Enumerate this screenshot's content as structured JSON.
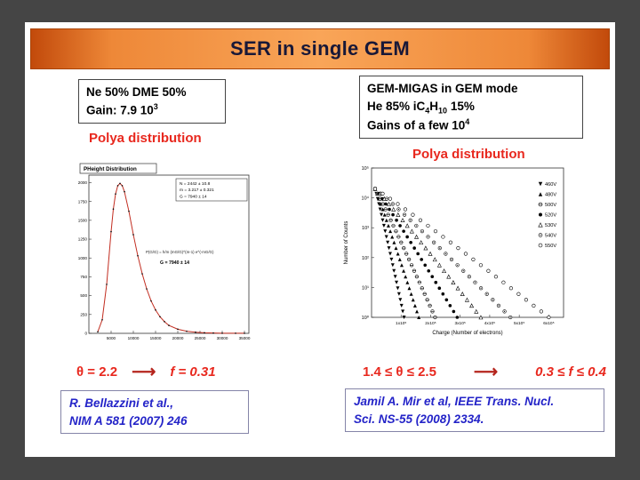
{
  "title": "SER in single GEM",
  "left": {
    "info_box": {
      "line1": "Ne 50% DME 50%",
      "gain_base": "Gain: 7.9 10",
      "gain_exp": "3"
    },
    "polya_label": "Polya distribution",
    "theta": "θ = 2.2",
    "f": "f = 0.31",
    "citation": [
      "R. Bellazzini et al.,",
      "NIM A 581 (2007) 246"
    ]
  },
  "right": {
    "info_box": {
      "line1": "GEM-MIGAS in GEM mode",
      "line2": {
        "a": "He 85% iC",
        "sub1": "4",
        "b": "H",
        "sub2": "10",
        "c": " 15%"
      },
      "line3_base": "Gains of a few 10",
      "line3_exp": "4"
    },
    "polya_label": "Polya distribution",
    "theta_range": "1.4 ≤ θ ≤ 2.5",
    "f_range": "0.3 ≤ f ≤ 0.4",
    "citation": [
      "Jamil A. Mir et al, IEEE Trans.  Nucl.",
      "Sci. NS-55 (2008) 2334."
    ]
  },
  "chart_data": [
    {
      "type": "line",
      "title": "PHeight Distribution",
      "stats": [
        "N = 2442 ± 10.8",
        "m = 3.217 ± 0.321",
        "G = 7940 ± 14"
      ],
      "formula": "P(G/G) = h/m (mG/G)^(m-1) e^(-mG/G)",
      "mean_label": "G = 7940 ± 14",
      "x": [
        2000,
        3000,
        4000,
        5000,
        5500,
        6000,
        6500,
        7000,
        7500,
        8000,
        9000,
        10000,
        11000,
        12000,
        13000,
        14000,
        15000,
        16000,
        17000,
        18000,
        20000,
        22000,
        24000,
        26000,
        28000,
        30000,
        33000,
        35000
      ],
      "y": [
        20,
        180,
        650,
        1350,
        1650,
        1850,
        1960,
        1990,
        1960,
        1880,
        1620,
        1310,
        1030,
        790,
        590,
        430,
        310,
        220,
        155,
        105,
        55,
        28,
        15,
        8,
        4,
        2,
        1,
        1
      ],
      "x_ticks": [
        5000,
        10000,
        15000,
        20000,
        25000,
        30000,
        35000
      ],
      "y_ticks": [
        0,
        250,
        500,
        750,
        1000,
        1250,
        1500,
        1750,
        2000
      ],
      "xlim": [
        0,
        36000
      ],
      "ylim": [
        0,
        2100
      ],
      "line_color": "#c22d20"
    },
    {
      "type": "scatter",
      "ylabel": "Number of Counts",
      "xlabel": "Charge (Number of electrons)",
      "y_tick_labels": [
        "10⁰",
        "10¹",
        "10²",
        "10³",
        "10⁴",
        "10⁵"
      ],
      "x_tick_values": [
        100000,
        200000,
        300000,
        400000,
        500000,
        600000
      ],
      "x_tick_labels": [
        "1x10⁵",
        "2x10⁵",
        "3x10⁵",
        "4x10⁵",
        "5x10⁵",
        "6x10⁵"
      ],
      "n0": 20000,
      "x_start": 12000,
      "xlim": [
        0,
        650000
      ],
      "ylog_range": [
        0,
        5
      ],
      "series": [
        {
          "name": "460V",
          "marker": "tri-down-f",
          "x_end": 110000
        },
        {
          "name": "480V",
          "marker": "tri-up-f",
          "x_end": 160000
        },
        {
          "name": "500V",
          "marker": "circ-minus",
          "x_end": 215000
        },
        {
          "name": "520V",
          "marker": "circ-f",
          "x_end": 290000
        },
        {
          "name": "530V",
          "marker": "tri-up-o",
          "x_end": 370000
        },
        {
          "name": "540V",
          "marker": "circ-dot",
          "x_end": 470000
        },
        {
          "name": "550V",
          "marker": "circ-o",
          "x_end": 600000
        }
      ]
    }
  ]
}
